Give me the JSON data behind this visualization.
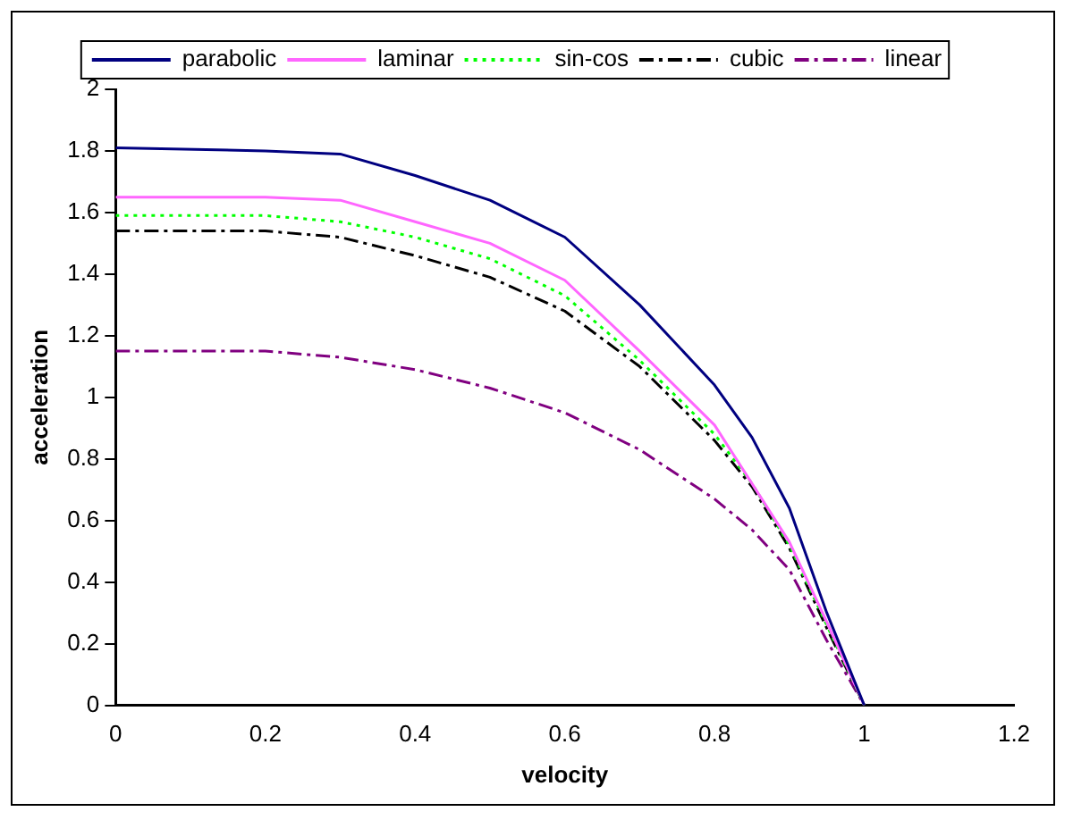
{
  "chart_data": {
    "type": "line",
    "xlabel": "velocity",
    "ylabel": "acceleration",
    "x": [
      0,
      0.2,
      0.3,
      0.4,
      0.5,
      0.6,
      0.7,
      0.8,
      0.85,
      0.9,
      0.95,
      1
    ],
    "series": [
      {
        "name": "parabolic",
        "color": "#000080",
        "line_style": "solid",
        "values": [
          1.81,
          1.8,
          1.79,
          1.72,
          1.64,
          1.52,
          1.3,
          1.04,
          0.87,
          0.64,
          0.3,
          0
        ]
      },
      {
        "name": "laminar",
        "color": "#ff66ff",
        "line_style": "solid",
        "values": [
          1.65,
          1.65,
          1.64,
          1.57,
          1.5,
          1.38,
          1.15,
          0.91,
          0.72,
          0.53,
          0.27,
          0
        ]
      },
      {
        "name": "sin-cos",
        "color": "#00ff00",
        "line_style": "dotted",
        "values": [
          1.59,
          1.59,
          1.57,
          1.52,
          1.45,
          1.33,
          1.12,
          0.88,
          0.72,
          0.52,
          0.26,
          0
        ]
      },
      {
        "name": "cubic",
        "color": "#000000",
        "line_style": "dashed",
        "values": [
          1.54,
          1.54,
          1.52,
          1.46,
          1.39,
          1.28,
          1.1,
          0.86,
          0.71,
          0.51,
          0.25,
          0
        ]
      },
      {
        "name": "linear",
        "color": "#800080",
        "line_style": "dashed",
        "values": [
          1.15,
          1.15,
          1.13,
          1.09,
          1.03,
          0.95,
          0.83,
          0.67,
          0.57,
          0.44,
          0.21,
          0
        ]
      }
    ],
    "xlim": [
      0,
      1.2
    ],
    "xticks": [
      0,
      0.2,
      0.4,
      0.6,
      0.8,
      1,
      1.2
    ],
    "ylim": [
      0,
      2
    ],
    "yticks": [
      0,
      0.2,
      0.4,
      0.6,
      0.8,
      1,
      1.2,
      1.4,
      1.6,
      1.8,
      2
    ],
    "grid": false,
    "legend": "top",
    "marker": "none"
  }
}
